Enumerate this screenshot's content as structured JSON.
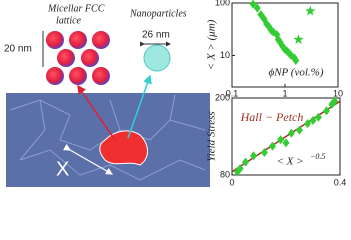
{
  "illustration": {
    "lattice_label": [
      "Micellar FCC",
      "lattice"
    ],
    "nanoparticle_label": "Nanoparticles",
    "lattice_size": "20 nm",
    "particle_size": "26 nm",
    "grain_label": "X"
  },
  "chart_data": [
    {
      "type": "scatter",
      "y_label": "< X > (μm)",
      "x_label": "ϕNP (vol.%)",
      "log_x": true,
      "log_y": true,
      "xlim": [
        0.1,
        10
      ],
      "ylim": [
        2.5,
        100
      ],
      "xticks": [
        0.1,
        1,
        10
      ],
      "yticks": [
        10,
        100
      ],
      "series": [
        {
          "marker": "diamond",
          "color": "#33cc33",
          "x": [
            0.25,
            0.3,
            0.35,
            0.4,
            0.45,
            0.5,
            0.55,
            0.6,
            0.7,
            0.75,
            0.8,
            0.9,
            1.0,
            1.1,
            1.2,
            1.3,
            1.5,
            1.6
          ],
          "values": [
            95,
            80,
            60,
            50,
            40,
            35,
            30,
            28,
            25,
            20,
            18,
            15,
            13,
            12,
            11,
            10,
            9,
            8
          ]
        },
        {
          "marker": "star",
          "color": "#33cc33",
          "x": [
            3,
            1.8
          ],
          "values": [
            70,
            20
          ]
        }
      ]
    },
    {
      "type": "scatter",
      "y_label": "Yield Stress",
      "x_label": "< X >",
      "x_label_exponent": "−0.5",
      "annotation": "Hall − Petch",
      "xlim": [
        0,
        0.4
      ],
      "ylim": [
        80,
        200
      ],
      "xticks": [
        0,
        0.4
      ],
      "yticks": [
        80,
        200
      ],
      "series": [
        {
          "marker": "diamond",
          "color": "#33cc33",
          "x": [
            0.02,
            0.03,
            0.05,
            0.08,
            0.12,
            0.15,
            0.18,
            0.2,
            0.22,
            0.25,
            0.28,
            0.3,
            0.32,
            0.35,
            0.37,
            0.38
          ],
          "values": [
            85,
            90,
            100,
            110,
            115,
            125,
            135,
            130,
            145,
            150,
            160,
            165,
            170,
            180,
            190,
            195
          ]
        }
      ],
      "fit": {
        "color": "#a03020",
        "x": [
          0,
          0.4
        ],
        "values": [
          85,
          195
        ]
      }
    }
  ]
}
